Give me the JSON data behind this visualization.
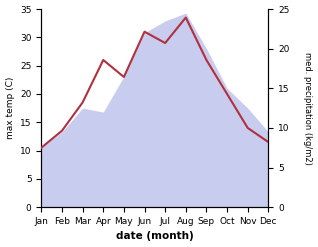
{
  "months": [
    "Jan",
    "Feb",
    "Mar",
    "Apr",
    "May",
    "Jun",
    "Jul",
    "Aug",
    "Sep",
    "Oct",
    "Nov",
    "Dec"
  ],
  "temp": [
    10.5,
    13.5,
    18.5,
    26.0,
    23.0,
    31.0,
    29.0,
    33.5,
    26.0,
    20.0,
    14.0,
    11.5
  ],
  "precip": [
    7.5,
    9.5,
    12.5,
    12.0,
    16.5,
    22.0,
    23.5,
    24.5,
    20.0,
    15.0,
    12.5,
    9.5
  ],
  "temp_color": "#b03040",
  "precip_fill_color": "#c8ccee",
  "left_ylim": [
    0,
    35
  ],
  "right_ylim": [
    0,
    25
  ],
  "left_yticks": [
    0,
    5,
    10,
    15,
    20,
    25,
    30,
    35
  ],
  "right_yticks": [
    0,
    5,
    10,
    15,
    20,
    25
  ],
  "left_ylabel": "max temp (C)",
  "right_ylabel": "med. precipitation (kg/m2)",
  "xlabel": "date (month)",
  "background_color": "#ffffff"
}
